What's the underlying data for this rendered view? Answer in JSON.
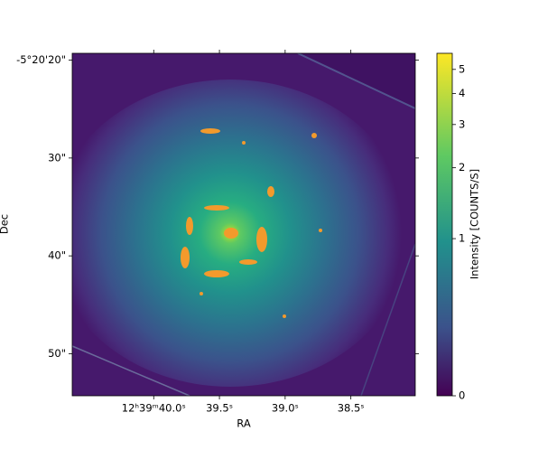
{
  "chart_data": {
    "type": "image",
    "xlabel": "RA",
    "ylabel": "Dec",
    "xlim": [
      40.62,
      38.01
    ],
    "xticks": [
      {
        "value": 40.0,
        "label": "12ʰ39ᵐ40.0ˢ"
      },
      {
        "value": 39.5,
        "label": "39.5ˢ"
      },
      {
        "value": 39.0,
        "label": "39.0ˢ"
      },
      {
        "value": 38.5,
        "label": "38.5ˢ"
      }
    ],
    "ylim": [
      54.3,
      19.3
    ],
    "yticks": [
      {
        "value": 20,
        "label": "-5°20'20\""
      },
      {
        "value": 30,
        "label": "30\""
      },
      {
        "value": 40,
        "label": "40\""
      },
      {
        "value": 50,
        "label": "50\""
      }
    ],
    "colorbar": {
      "label": "Intensity [COUNTS/S]",
      "clim": [
        0,
        5.8
      ],
      "stretch": "asinh",
      "stretch_a": 0.5,
      "ticks": [
        0,
        1,
        2,
        3,
        4,
        5
      ]
    }
  }
}
